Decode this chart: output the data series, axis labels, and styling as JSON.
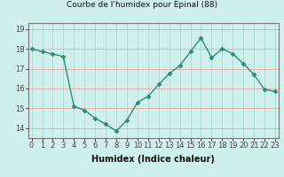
{
  "title": "Courbe de l'humidex pour Epinal (88)",
  "xlabel": "Humidex (Indice chaleur)",
  "x": [
    0,
    1,
    2,
    3,
    4,
    5,
    6,
    7,
    8,
    9,
    10,
    11,
    12,
    13,
    14,
    15,
    16,
    17,
    18,
    19,
    20,
    21,
    22,
    23
  ],
  "y": [
    18.0,
    17.85,
    17.75,
    17.6,
    15.1,
    14.9,
    14.5,
    14.2,
    13.85,
    14.4,
    15.3,
    15.6,
    16.2,
    16.75,
    17.15,
    17.85,
    18.55,
    17.55,
    18.0,
    17.75,
    17.25,
    16.7,
    15.95,
    15.85
  ],
  "line_color": "#2d8b7a",
  "marker": "D",
  "marker_size": 2.5,
  "bg_color": "#cff0ec",
  "grid_color_h": "#e8b0b0",
  "grid_color_v": "#b0ddd8",
  "tick_color": "#444444",
  "ylim_min": 13.5,
  "ylim_max": 19.3,
  "xlim_min": -0.3,
  "xlim_max": 23.3,
  "yticks": [
    14,
    15,
    16,
    17,
    18,
    19
  ],
  "xticks": [
    0,
    1,
    2,
    3,
    4,
    5,
    6,
    7,
    8,
    9,
    10,
    11,
    12,
    13,
    14,
    15,
    16,
    17,
    18,
    19,
    20,
    21,
    22,
    23
  ],
  "xtick_labels": [
    "0",
    "1",
    "2",
    "3",
    "4",
    "5",
    "6",
    "7",
    "8",
    "9",
    "10",
    "11",
    "12",
    "13",
    "14",
    "15",
    "16",
    "17",
    "18",
    "19",
    "20",
    "21",
    "22",
    "23"
  ],
  "title_fontsize": 6.5,
  "label_fontsize": 7,
  "tick_fontsize": 6,
  "linewidth": 1.0
}
